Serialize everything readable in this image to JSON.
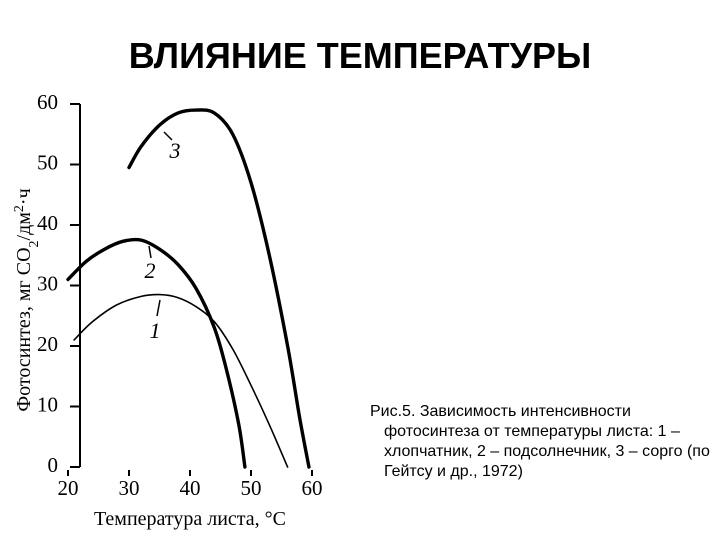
{
  "chart_data": {
    "type": "line",
    "title": "ВЛИЯНИЕ ТЕМПЕРАТУРЫ",
    "x_label": "Температура листа, °C",
    "y_label": [
      "Фотосинтез, мг CO",
      "2",
      "/дм",
      "2",
      "·ч"
    ],
    "xlim": [
      20,
      60
    ],
    "xticks": [
      20,
      30,
      40,
      50,
      60
    ],
    "ylim": [
      0,
      60
    ],
    "yticks": [
      0,
      10,
      20,
      30,
      40,
      50,
      60
    ],
    "series": [
      {
        "name": "1",
        "color": "#000000",
        "x": [
          21,
          24,
          28,
          32,
          35,
          38,
          41,
          44,
          47,
          50,
          53,
          56
        ],
        "values": [
          21,
          24,
          26.8,
          28.2,
          28.5,
          28,
          26.5,
          24,
          19.5,
          13.5,
          7,
          0
        ]
      },
      {
        "name": "2",
        "color": "#000000",
        "x": [
          20,
          23,
          26,
          29,
          32,
          35,
          38,
          41,
          44,
          46,
          48,
          49
        ],
        "values": [
          31,
          34,
          36,
          37.3,
          37.5,
          36,
          33.5,
          29.5,
          23,
          16,
          7,
          0
        ]
      },
      {
        "name": "3",
        "color": "#000000",
        "x": [
          30,
          32,
          35,
          38,
          41,
          44,
          47,
          50,
          53,
          56,
          58,
          59.5
        ],
        "values": [
          49.5,
          53,
          56.5,
          58.5,
          59,
          58.5,
          55,
          47,
          35,
          20,
          8,
          0
        ]
      }
    ],
    "caption": "Рис.5. Зависимость интенсивности фотосинтеза от температуры листа: 1 – хлопчатник, 2 – подсолнечник, 3 – сорго (по Гейтсу и др., 1972)"
  }
}
